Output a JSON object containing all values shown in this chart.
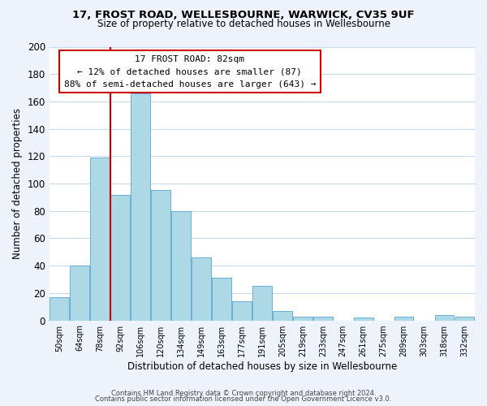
{
  "title": "17, FROST ROAD, WELLESBOURNE, WARWICK, CV35 9UF",
  "subtitle": "Size of property relative to detached houses in Wellesbourne",
  "xlabel": "Distribution of detached houses by size in Wellesbourne",
  "ylabel": "Number of detached properties",
  "footer_line1": "Contains HM Land Registry data © Crown copyright and database right 2024.",
  "footer_line2": "Contains public sector information licensed under the Open Government Licence v3.0.",
  "bin_labels": [
    "50sqm",
    "64sqm",
    "78sqm",
    "92sqm",
    "106sqm",
    "120sqm",
    "134sqm",
    "149sqm",
    "163sqm",
    "177sqm",
    "191sqm",
    "205sqm",
    "219sqm",
    "233sqm",
    "247sqm",
    "261sqm",
    "275sqm",
    "289sqm",
    "303sqm",
    "318sqm",
    "332sqm"
  ],
  "bar_heights": [
    17,
    40,
    119,
    92,
    166,
    95,
    80,
    46,
    31,
    14,
    25,
    7,
    3,
    3,
    0,
    2,
    0,
    3,
    0,
    4,
    3
  ],
  "bar_color": "#add8e6",
  "bar_edge_color": "#6baed6",
  "property_label": "17 FROST ROAD: 82sqm",
  "annotation_line1": "← 12% of detached houses are smaller (87)",
  "annotation_line2": "88% of semi-detached houses are larger (643) →",
  "vline_x": 2.5,
  "ylim": [
    0,
    200
  ],
  "yticks": [
    0,
    20,
    40,
    60,
    80,
    100,
    120,
    140,
    160,
    180,
    200
  ],
  "background_color": "#eef2fb",
  "plot_bg_color": "#ffffff",
  "annotation_box_color": "#ffffff",
  "annotation_box_edge": "#cc0000",
  "vline_color": "#cc0000",
  "grid_color": "#c8d8ee"
}
